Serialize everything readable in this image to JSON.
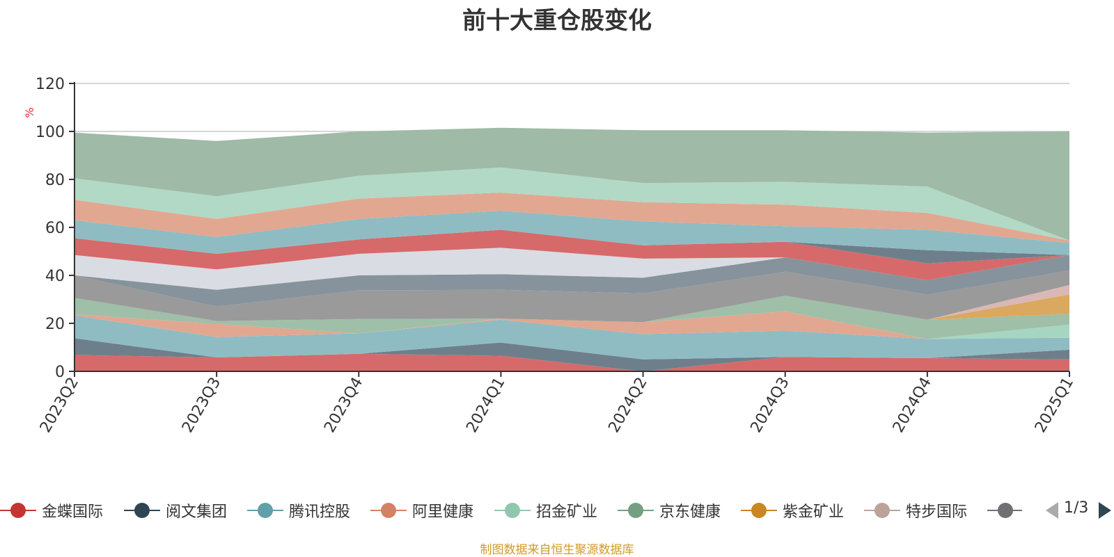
{
  "chart_data": {
    "type": "area",
    "title": "前十大重仓股变化",
    "ylabel": "%",
    "ylim": [
      0,
      120
    ],
    "yticks": [
      0,
      20,
      40,
      60,
      80,
      100,
      120
    ],
    "x": [
      "2023Q2",
      "2023Q3",
      "2023Q4",
      "2024Q1",
      "2024Q2",
      "2024Q3",
      "2024Q4",
      "2025Q1"
    ],
    "stacked": true,
    "grid": true,
    "series": [
      {
        "name": "金蝶国际",
        "color": "#d66a6a",
        "values": [
          6.8,
          5.8,
          7.3,
          6.5,
          0.0,
          6.0,
          5.5,
          5.0
        ]
      },
      {
        "name": "阅文集团",
        "color": "#6e7f8c",
        "values": [
          7.0,
          0.0,
          0.0,
          5.5,
          5.0,
          0.0,
          0.0,
          4.0
        ]
      },
      {
        "name": "腾讯控股",
        "color": "#8fbcc3",
        "values": [
          9.5,
          8.5,
          8.5,
          9.5,
          10.5,
          11.0,
          8.0,
          5.0
        ]
      },
      {
        "name": "阿里健康",
        "color": "#e2a790",
        "values": [
          0.5,
          5.5,
          0.0,
          0.5,
          5.0,
          8.0,
          0.0,
          0.0
        ]
      },
      {
        "name": "招金矿业",
        "color": "#a6d6c1",
        "values": [
          0.0,
          0.0,
          0.0,
          0.0,
          0.0,
          0.0,
          0.0,
          5.5
        ]
      },
      {
        "name": "京东健康",
        "color": "#9fbfa8",
        "values": [
          6.8,
          1.2,
          6.0,
          0.0,
          0.0,
          6.5,
          8.0,
          4.5
        ]
      },
      {
        "name": "紫金矿业",
        "color": "#daa85e",
        "values": [
          0.0,
          0.0,
          0.0,
          0.0,
          0.0,
          0.0,
          0.0,
          8.0
        ]
      },
      {
        "name": "特步国际",
        "color": "#d9b8b5",
        "values": [
          0.0,
          0.0,
          0.0,
          0.0,
          0.0,
          0.0,
          0.0,
          4.0
        ]
      },
      {
        "name": "",
        "color": "#9a9a9a",
        "values": [
          9.4,
          6.0,
          12.0,
          12.0,
          12.0,
          10.0,
          10.5,
          6.0
        ]
      },
      {
        "name": "",
        "color": "#86939c",
        "values": [
          0.0,
          7.0,
          6.2,
          6.5,
          6.5,
          6.0,
          6.0,
          6.5
        ]
      },
      {
        "name": "",
        "color": "#d9dce3",
        "values": [
          8.5,
          8.5,
          9.0,
          11.0,
          8.0,
          0.0,
          0.0,
          0.0
        ]
      },
      {
        "name": "",
        "color": "#d66a6a",
        "values": [
          7.0,
          6.5,
          6.0,
          7.5,
          5.5,
          6.5,
          7.0,
          0.0
        ]
      },
      {
        "name": "",
        "color": "#6e7f8c",
        "values": [
          0.0,
          0.0,
          0.0,
          0.0,
          0.0,
          0.0,
          5.5,
          0.0
        ]
      },
      {
        "name": "",
        "color": "#8fbcc3",
        "values": [
          7.5,
          7.0,
          8.5,
          8.0,
          10.0,
          6.5,
          8.5,
          5.0
        ]
      },
      {
        "name": "",
        "color": "#e2a790",
        "values": [
          8.5,
          7.5,
          8.5,
          7.5,
          8.0,
          9.0,
          7.0,
          1.0
        ]
      },
      {
        "name": "",
        "color": "#b1d9c6",
        "values": [
          9.0,
          9.5,
          9.5,
          10.5,
          8.0,
          9.5,
          11.0,
          0.0
        ]
      },
      {
        "name": "",
        "color": "#9fbaa6",
        "values": [
          19.0,
          23.0,
          18.5,
          16.5,
          22.0,
          21.5,
          22.5,
          45.5
        ]
      }
    ]
  },
  "legend": {
    "items": [
      {
        "label": "金蝶国际",
        "color": "#c23531"
      },
      {
        "label": "阅文集团",
        "color": "#2f4554"
      },
      {
        "label": "腾讯控股",
        "color": "#61a0a8"
      },
      {
        "label": "阿里健康",
        "color": "#d48265"
      },
      {
        "label": "招金矿业",
        "color": "#91c7ae"
      },
      {
        "label": "京东健康",
        "color": "#749f83"
      },
      {
        "label": "紫金矿业",
        "color": "#ca8622"
      },
      {
        "label": "特步国际",
        "color": "#bda29a"
      },
      {
        "label": "",
        "color": "#6e7074"
      }
    ],
    "page_text": "1/3"
  },
  "source_note": "制图数据来自恒生聚源数据库"
}
